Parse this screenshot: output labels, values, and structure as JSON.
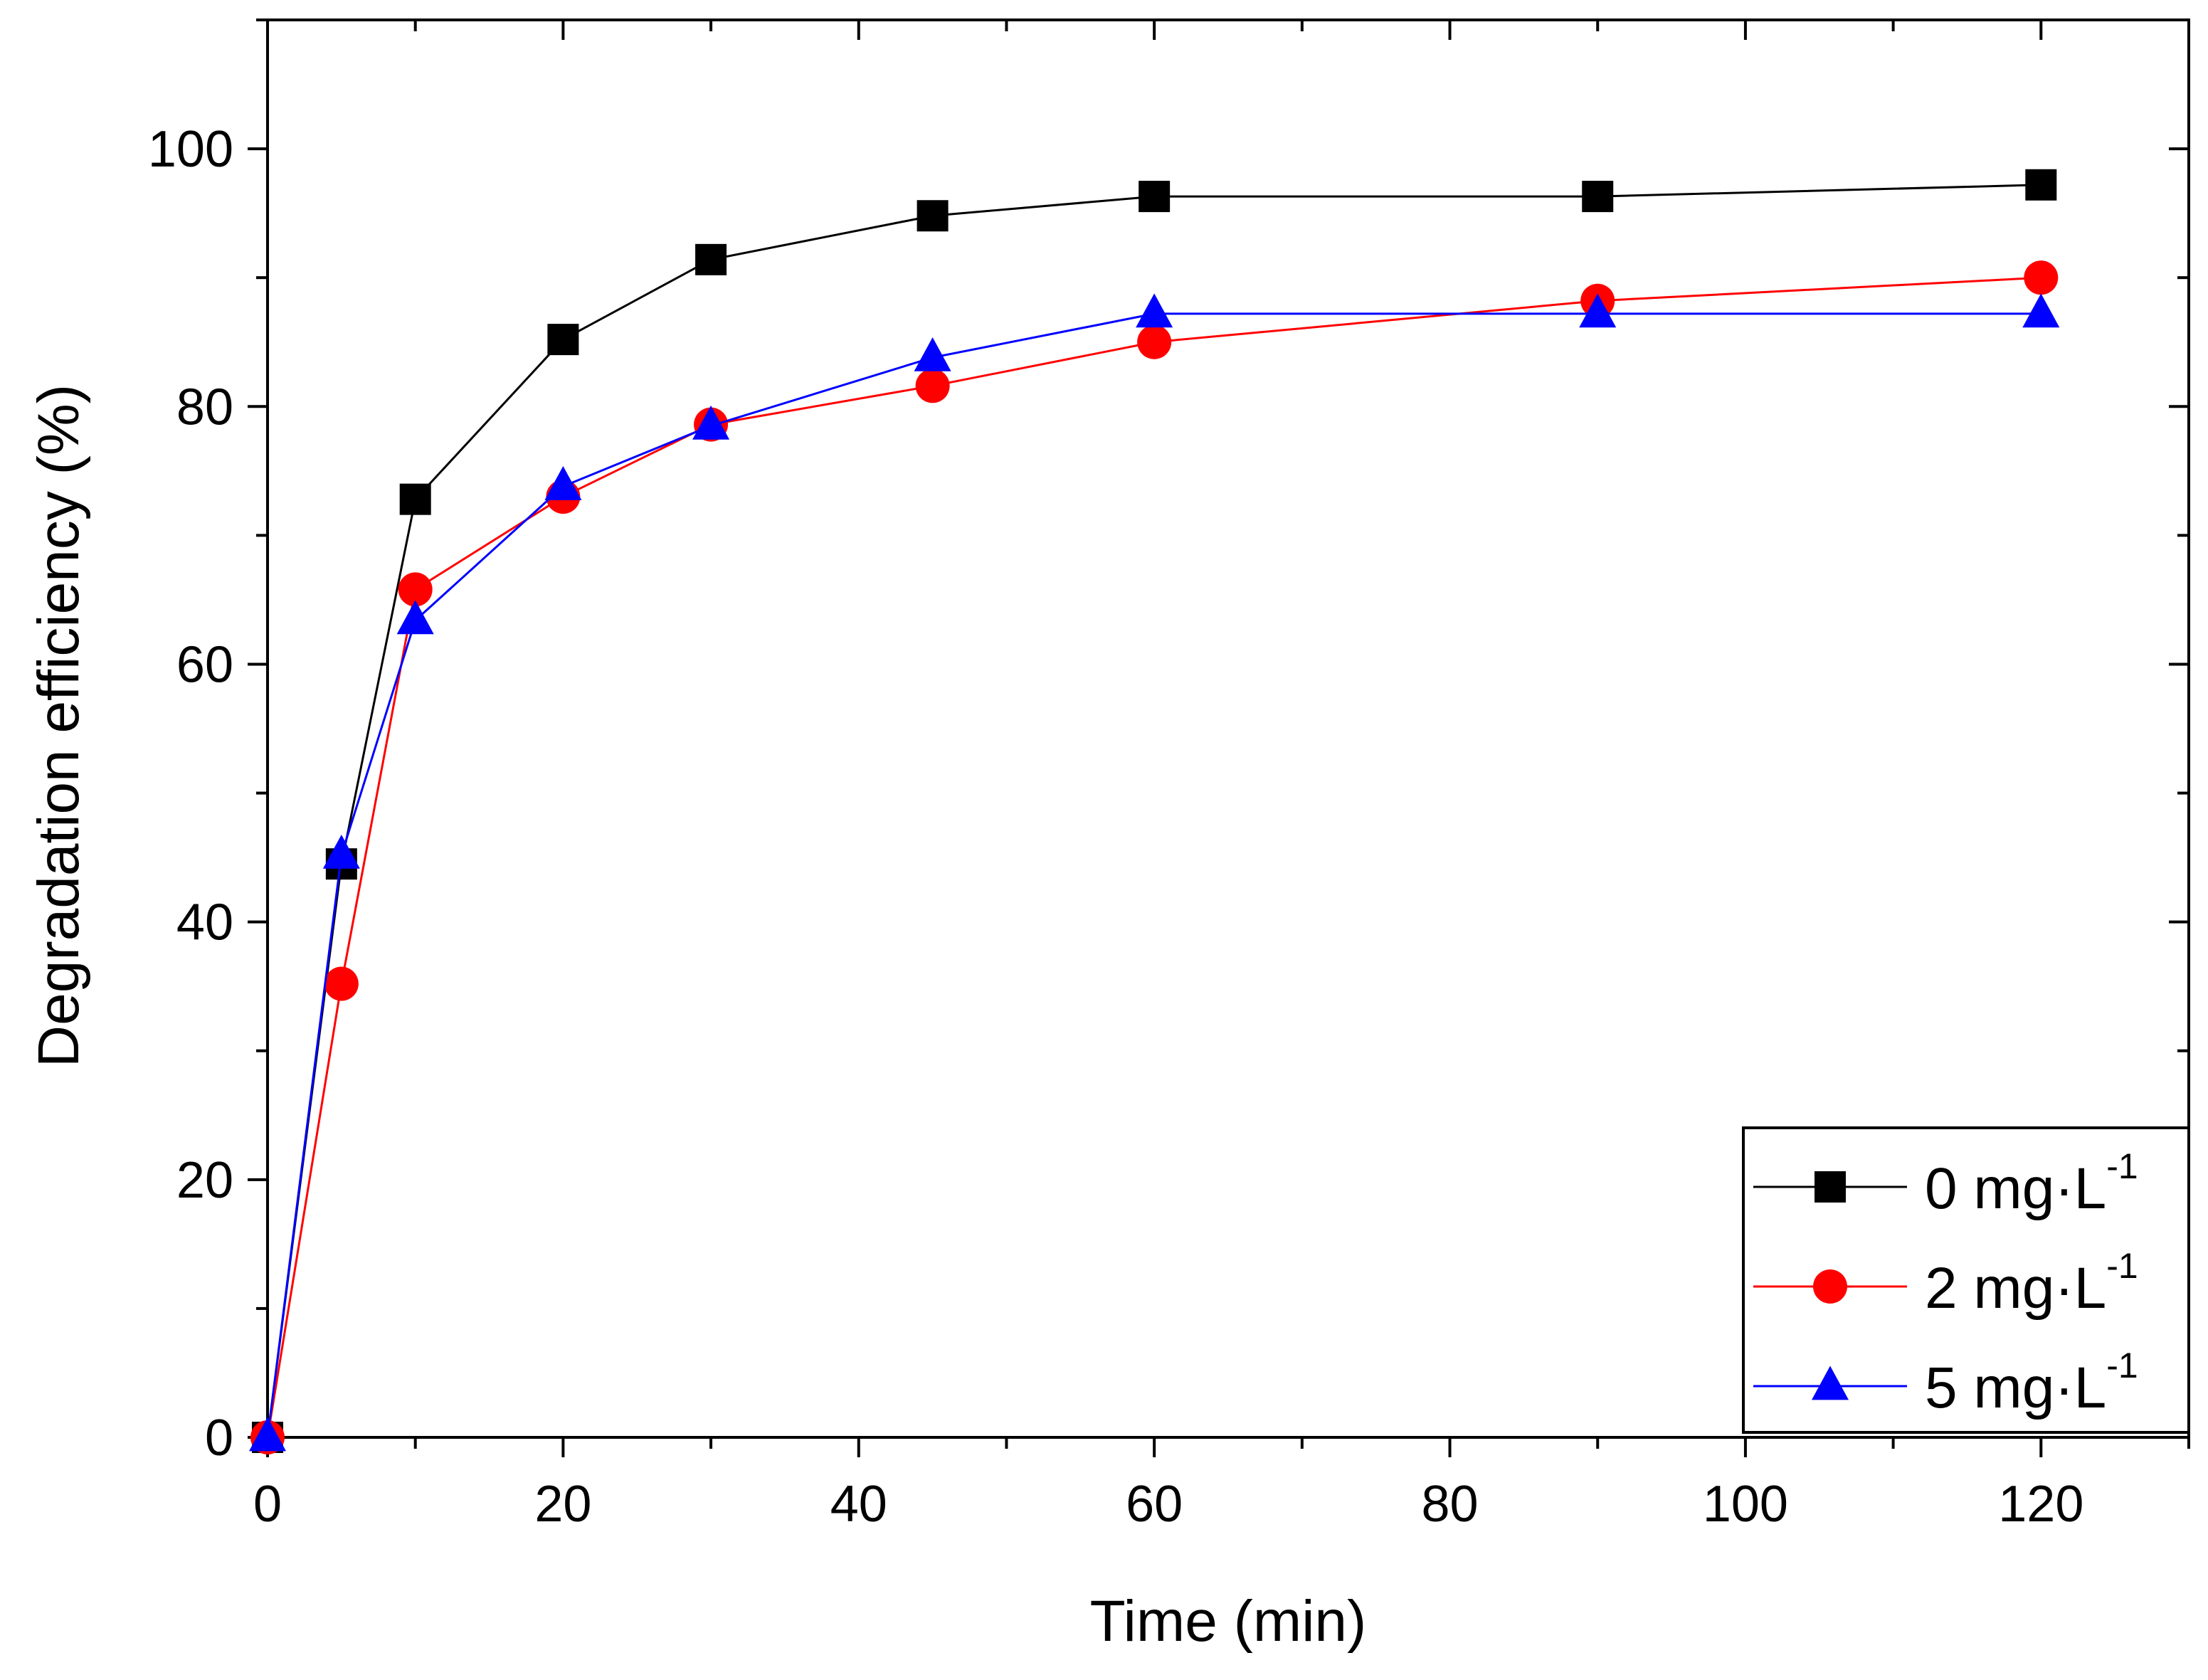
{
  "chart_data": {
    "type": "line",
    "title": "",
    "xlabel": "Time (min)",
    "ylabel": "Degradation efficiency (%)",
    "xlim": [
      0,
      130
    ],
    "ylim": [
      0,
      110
    ],
    "xticks": [
      0,
      20,
      40,
      60,
      80,
      100,
      120
    ],
    "yticks": [
      0,
      20,
      40,
      60,
      80,
      100
    ],
    "x_tick_labels": [
      "0",
      "20",
      "40",
      "60",
      "80",
      "100",
      "120"
    ],
    "y_tick_labels": [
      "0",
      "20",
      "40",
      "60",
      "80",
      "100"
    ],
    "legend_position": "bottom-right",
    "x": [
      0,
      5,
      10,
      20,
      30,
      45,
      60,
      90,
      120
    ],
    "series": [
      {
        "name": "0 mg·L",
        "sup": "-1",
        "color": "#000000",
        "marker": "square",
        "values": [
          0,
          44.5,
          72.8,
          85.2,
          91.4,
          94.8,
          96.3,
          96.3,
          97.2
        ]
      },
      {
        "name": "2 mg·L",
        "sup": "-1",
        "color": "#ff0000",
        "marker": "circle",
        "values": [
          0,
          35.2,
          65.8,
          73.0,
          78.6,
          81.6,
          85.0,
          88.2,
          90.0
        ]
      },
      {
        "name": "5 mg·L",
        "sup": "-1",
        "color": "#0000ff",
        "marker": "triangle",
        "values": [
          0,
          45.2,
          63.4,
          73.8,
          78.5,
          83.8,
          87.2,
          87.2,
          87.2
        ]
      }
    ]
  }
}
